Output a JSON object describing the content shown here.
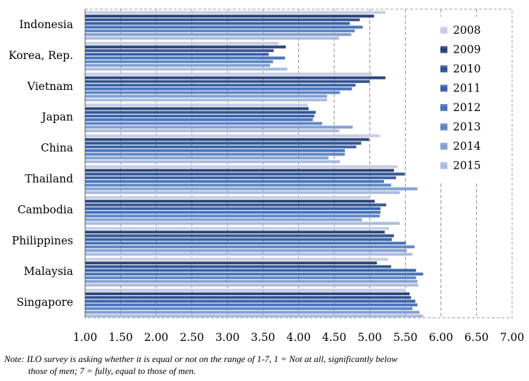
{
  "chart_data": {
    "type": "bar",
    "orientation": "horizontal",
    "title": "",
    "xlabel": "",
    "ylabel": "",
    "xlim": [
      1.0,
      7.0
    ],
    "x_ticks": [
      "1.00",
      "1.50",
      "2.00",
      "2.50",
      "3.00",
      "3.50",
      "4.00",
      "4.50",
      "5.00",
      "5.50",
      "6.00",
      "6.50",
      "7.00"
    ],
    "gridlines": "vertical-dashed",
    "legend_position": "right-inside",
    "categories": [
      "Indonesia",
      "Korea, Rep.",
      "Vietnam",
      "Japan",
      "China",
      "Thailand",
      "Cambodia",
      "Philippines",
      "Malaysia",
      "Singapore"
    ],
    "series": [
      {
        "name": "2008",
        "color": "#c3cbe0",
        "values": [
          5.22,
          3.72,
          5.03,
          4.13,
          5.14,
          5.39,
          5.0,
          5.27,
          5.26,
          5.5
        ]
      },
      {
        "name": "2009",
        "color": "#1f3b73",
        "values": [
          5.06,
          3.82,
          5.22,
          4.14,
          4.99,
          5.34,
          5.07,
          5.21,
          5.1,
          5.56
        ]
      },
      {
        "name": "2010",
        "color": "#2a4d8f",
        "values": [
          4.86,
          3.65,
          5.0,
          4.24,
          4.88,
          5.49,
          5.23,
          5.34,
          5.3,
          5.58
        ]
      },
      {
        "name": "2011",
        "color": "#2f5aa3",
        "values": [
          4.72,
          3.58,
          4.8,
          4.22,
          4.81,
          5.37,
          5.15,
          5.31,
          5.65,
          5.64
        ]
      },
      {
        "name": "2012",
        "color": "#3d6bb8",
        "values": [
          4.9,
          3.81,
          4.75,
          4.2,
          4.65,
          5.2,
          5.15,
          5.51,
          5.75,
          5.67
        ]
      },
      {
        "name": "2013",
        "color": "#5680c4",
        "values": [
          4.79,
          3.64,
          4.58,
          4.33,
          4.65,
          5.3,
          5.14,
          5.63,
          5.65,
          5.6
        ]
      },
      {
        "name": "2014",
        "color": "#7c9bd0",
        "values": [
          4.74,
          3.6,
          4.4,
          4.76,
          4.42,
          5.67,
          4.89,
          5.52,
          5.67,
          5.7
        ]
      },
      {
        "name": "2015",
        "color": "#a6b7dc",
        "values": [
          4.57,
          3.84,
          4.4,
          4.57,
          4.58,
          5.42,
          5.42,
          5.6,
          5.68,
          5.75
        ]
      }
    ],
    "note": {
      "line1": "Note: ILO survey is asking whether it is equal or not on the range of 1-7, 1 = Not at all, significantly below",
      "line2": "those of men; 7 = fully, equal to those of men."
    }
  }
}
